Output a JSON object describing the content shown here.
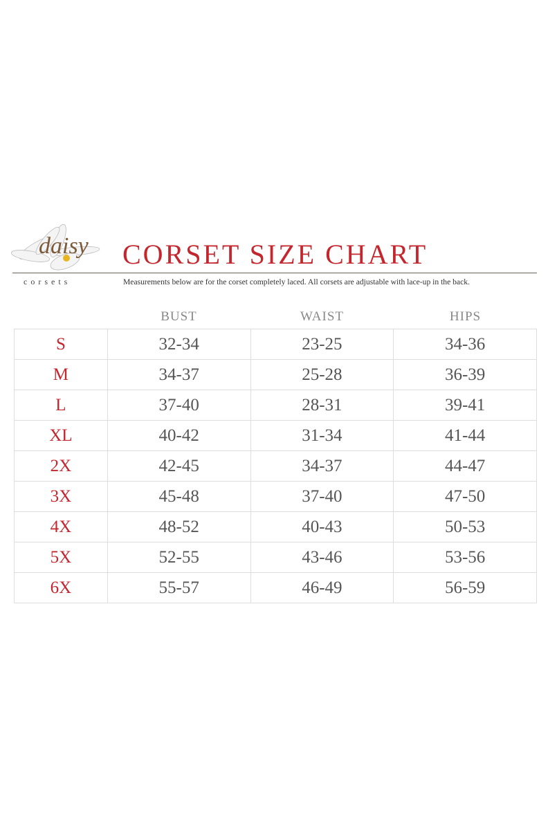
{
  "logo": {
    "script": "daisy",
    "word": "corsets"
  },
  "title": "CORSET SIZE CHART",
  "subtitle": "Measurements below are for the corset completely laced.  All corsets are adjustable with lace-up in the back.",
  "colors": {
    "accent": "#c4262e",
    "text": "#555555",
    "header": "#888888",
    "border": "#dddddd"
  },
  "table": {
    "headers": [
      "BUST",
      "WAIST",
      "HIPS"
    ],
    "rows": [
      {
        "size": "S",
        "bust": "32-34",
        "waist": "23-25",
        "hips": "34-36"
      },
      {
        "size": "M",
        "bust": "34-37",
        "waist": "25-28",
        "hips": "36-39"
      },
      {
        "size": "L",
        "bust": "37-40",
        "waist": "28-31",
        "hips": "39-41"
      },
      {
        "size": "XL",
        "bust": "40-42",
        "waist": "31-34",
        "hips": "41-44"
      },
      {
        "size": "2X",
        "bust": "42-45",
        "waist": "34-37",
        "hips": "44-47"
      },
      {
        "size": "3X",
        "bust": "45-48",
        "waist": "37-40",
        "hips": "47-50"
      },
      {
        "size": "4X",
        "bust": "48-52",
        "waist": "40-43",
        "hips": "50-53"
      },
      {
        "size": "5X",
        "bust": "52-55",
        "waist": "43-46",
        "hips": "53-56"
      },
      {
        "size": "6X",
        "bust": "55-57",
        "waist": "46-49",
        "hips": "56-59"
      }
    ]
  }
}
